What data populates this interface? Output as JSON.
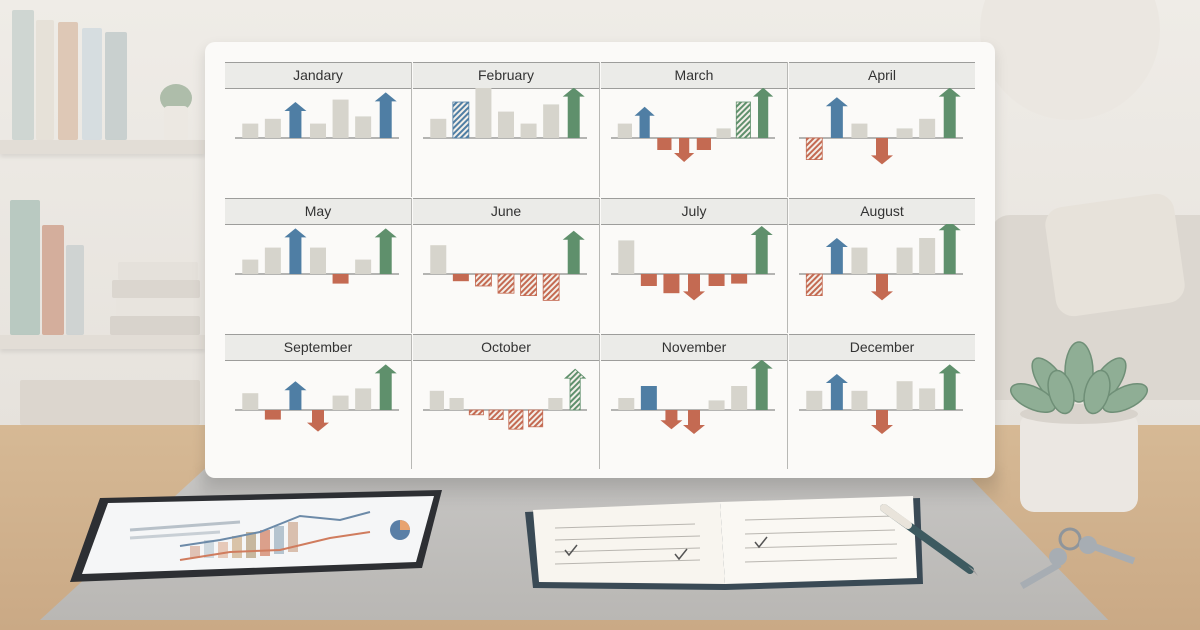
{
  "months": [
    {
      "name": "Jandary",
      "bars": [
        {
          "v": 0.3,
          "k": "n"
        },
        {
          "v": 0.4,
          "k": "n"
        },
        {
          "v": 0.75,
          "k": "b",
          "arrow": true
        },
        {
          "v": 0.3,
          "k": "n"
        },
        {
          "v": 0.8,
          "k": "n"
        },
        {
          "v": 0.45,
          "k": "n"
        },
        {
          "v": 0.95,
          "k": "b",
          "arrow": true
        }
      ]
    },
    {
      "name": "February",
      "bars": [
        {
          "v": 0.4,
          "k": "n"
        },
        {
          "v": 0.75,
          "k": "bh"
        },
        {
          "v": 1.15,
          "k": "n"
        },
        {
          "v": 0.55,
          "k": "n"
        },
        {
          "v": 0.3,
          "k": "n"
        },
        {
          "v": 0.7,
          "k": "n"
        },
        {
          "v": 1.05,
          "k": "g",
          "arrow": true
        }
      ]
    },
    {
      "name": "March",
      "bars": [
        {
          "v": 0.3,
          "k": "n"
        },
        {
          "v": 0.65,
          "k": "b",
          "arrow": true
        },
        {
          "v": -0.25,
          "k": "r"
        },
        {
          "v": -0.5,
          "k": "r",
          "arrow": true
        },
        {
          "v": -0.25,
          "k": "r"
        },
        {
          "v": 0.2,
          "k": "n"
        },
        {
          "v": 0.75,
          "k": "gh"
        },
        {
          "v": 1.05,
          "k": "g",
          "arrow": true
        }
      ]
    },
    {
      "name": "April",
      "bars": [
        {
          "v": -0.45,
          "k": "rh"
        },
        {
          "v": 0.85,
          "k": "b",
          "arrow": true
        },
        {
          "v": 0.3,
          "k": "n"
        },
        {
          "v": -0.55,
          "k": "r",
          "arrow": true
        },
        {
          "v": 0.2,
          "k": "n"
        },
        {
          "v": 0.4,
          "k": "n"
        },
        {
          "v": 1.05,
          "k": "g",
          "arrow": true
        }
      ]
    },
    {
      "name": "May",
      "bars": [
        {
          "v": 0.3,
          "k": "n"
        },
        {
          "v": 0.55,
          "k": "n"
        },
        {
          "v": 0.95,
          "k": "b",
          "arrow": true
        },
        {
          "v": 0.55,
          "k": "n"
        },
        {
          "v": -0.2,
          "k": "r"
        },
        {
          "v": 0.3,
          "k": "n"
        },
        {
          "v": 0.95,
          "k": "g",
          "arrow": true
        }
      ]
    },
    {
      "name": "June",
      "bars": [
        {
          "v": 0.6,
          "k": "n"
        },
        {
          "v": -0.15,
          "k": "r"
        },
        {
          "v": -0.25,
          "k": "rh"
        },
        {
          "v": -0.4,
          "k": "rh"
        },
        {
          "v": -0.45,
          "k": "rh"
        },
        {
          "v": -0.55,
          "k": "rh"
        },
        {
          "v": 0.9,
          "k": "g",
          "arrow": true
        }
      ]
    },
    {
      "name": "July",
      "bars": [
        {
          "v": 0.7,
          "k": "n"
        },
        {
          "v": -0.25,
          "k": "r"
        },
        {
          "v": -0.4,
          "k": "r"
        },
        {
          "v": -0.55,
          "k": "r",
          "arrow": true
        },
        {
          "v": -0.25,
          "k": "r"
        },
        {
          "v": -0.2,
          "k": "r"
        },
        {
          "v": 1.0,
          "k": "g",
          "arrow": true
        }
      ]
    },
    {
      "name": "August",
      "bars": [
        {
          "v": -0.45,
          "k": "rh"
        },
        {
          "v": 0.75,
          "k": "b",
          "arrow": true
        },
        {
          "v": 0.55,
          "k": "n"
        },
        {
          "v": -0.55,
          "k": "r",
          "arrow": true
        },
        {
          "v": 0.55,
          "k": "n"
        },
        {
          "v": 0.75,
          "k": "n"
        },
        {
          "v": 1.1,
          "k": "g",
          "arrow": true
        }
      ]
    },
    {
      "name": "September",
      "bars": [
        {
          "v": 0.35,
          "k": "n"
        },
        {
          "v": -0.2,
          "k": "r"
        },
        {
          "v": 0.6,
          "k": "b",
          "arrow": true
        },
        {
          "v": -0.45,
          "k": "r",
          "arrow": true
        },
        {
          "v": 0.3,
          "k": "n"
        },
        {
          "v": 0.45,
          "k": "n"
        },
        {
          "v": 0.95,
          "k": "g",
          "arrow": true
        }
      ]
    },
    {
      "name": "October",
      "bars": [
        {
          "v": 0.4,
          "k": "n"
        },
        {
          "v": 0.25,
          "k": "n"
        },
        {
          "v": -0.1,
          "k": "rh"
        },
        {
          "v": -0.2,
          "k": "rh"
        },
        {
          "v": -0.4,
          "k": "rh"
        },
        {
          "v": -0.35,
          "k": "rh"
        },
        {
          "v": 0.25,
          "k": "n"
        },
        {
          "v": 0.85,
          "k": "gh",
          "arrow": true
        }
      ]
    },
    {
      "name": "November",
      "bars": [
        {
          "v": 0.25,
          "k": "n"
        },
        {
          "v": 0.5,
          "k": "b"
        },
        {
          "v": -0.4,
          "k": "r",
          "arrow": true
        },
        {
          "v": -0.5,
          "k": "r",
          "arrow": true
        },
        {
          "v": 0.2,
          "k": "n"
        },
        {
          "v": 0.5,
          "k": "n"
        },
        {
          "v": 1.05,
          "k": "g",
          "arrow": true
        }
      ]
    },
    {
      "name": "December",
      "bars": [
        {
          "v": 0.4,
          "k": "n"
        },
        {
          "v": 0.75,
          "k": "b",
          "arrow": true
        },
        {
          "v": 0.4,
          "k": "n"
        },
        {
          "v": -0.5,
          "k": "r",
          "arrow": true
        },
        {
          "v": 0.6,
          "k": "n"
        },
        {
          "v": 0.45,
          "k": "n"
        },
        {
          "v": 0.95,
          "k": "g",
          "arrow": true
        }
      ]
    }
  ],
  "colors": {
    "neutral": "#d6d4cc",
    "blue": "#4f7ea4",
    "green": "#5f906c",
    "red": "#c46a52",
    "axis": "#8a8a88"
  }
}
